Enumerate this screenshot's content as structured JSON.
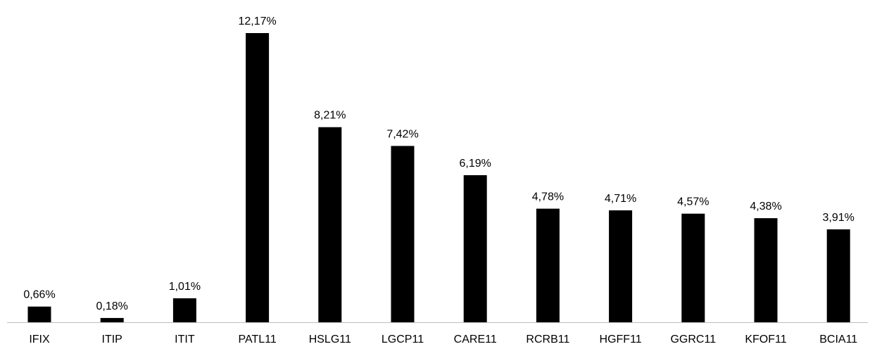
{
  "chart_data": {
    "type": "bar",
    "title": "",
    "xlabel": "",
    "ylabel": "",
    "categories": [
      "IFIX",
      "ITIP",
      "ITIT",
      "PATL11",
      "HSLG11",
      "LGCP11",
      "CARE11",
      "RCRB11",
      "HGFF11",
      "GGRC11",
      "KFOF11",
      "BCIA11"
    ],
    "values": [
      0.66,
      0.18,
      1.01,
      12.17,
      8.21,
      7.42,
      6.19,
      4.78,
      4.71,
      4.57,
      4.38,
      3.91
    ],
    "data_labels": [
      "0,66%",
      "0,18%",
      "1,01%",
      "12,17%",
      "8,21%",
      "7,42%",
      "6,19%",
      "4,78%",
      "4,71%",
      "4,57%",
      "4,38%",
      "3,91%"
    ],
    "ylim": [
      0,
      12.17
    ],
    "grid": false,
    "legend": "none",
    "colors": {
      "bar": "#000000",
      "axis": "#bfbfbf",
      "text": "#000000"
    }
  }
}
